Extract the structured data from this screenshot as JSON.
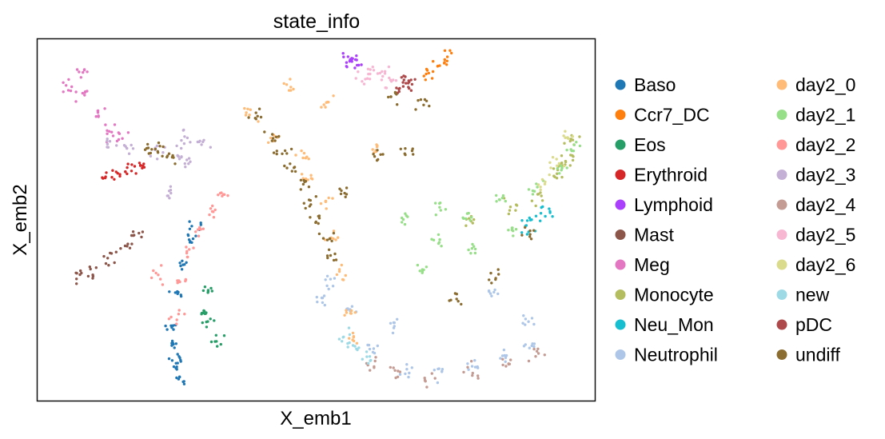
{
  "chart_data": {
    "type": "scatter",
    "title": "state_info",
    "xlabel": "X_emb1",
    "ylabel": "X_emb2",
    "grid": false,
    "legend_position": "right",
    "xlim": [
      0,
      100
    ],
    "ylim": [
      0,
      100
    ],
    "ticks_visible": false,
    "categories": [
      {
        "name": "Baso",
        "color": "#1f77b4"
      },
      {
        "name": "Ccr7_DC",
        "color": "#ff7f0e"
      },
      {
        "name": "Eos",
        "color": "#279e68"
      },
      {
        "name": "Erythroid",
        "color": "#d62728"
      },
      {
        "name": "Lymphoid",
        "color": "#aa40fc"
      },
      {
        "name": "Mast",
        "color": "#8c564b"
      },
      {
        "name": "Meg",
        "color": "#e377c2"
      },
      {
        "name": "Monocyte",
        "color": "#b5bd61"
      },
      {
        "name": "Neu_Mon",
        "color": "#17becf"
      },
      {
        "name": "Neutrophil",
        "color": "#aec7e8"
      },
      {
        "name": "day2_0",
        "color": "#ffbb78"
      },
      {
        "name": "day2_1",
        "color": "#98df8a"
      },
      {
        "name": "day2_2",
        "color": "#ff9896"
      },
      {
        "name": "day2_3",
        "color": "#c5b0d5"
      },
      {
        "name": "day2_4",
        "color": "#c49c94"
      },
      {
        "name": "day2_5",
        "color": "#f7b6d2"
      },
      {
        "name": "day2_6",
        "color": "#dbdb8d"
      },
      {
        "name": "new",
        "color": "#9edae5"
      },
      {
        "name": "pDC",
        "color": "#ad494a"
      },
      {
        "name": "undiff",
        "color": "#8c6d31"
      }
    ],
    "clusters": [
      {
        "series": "Baso",
        "points": [
          [
            26,
            6
          ],
          [
            25,
            12
          ],
          [
            24,
            20
          ],
          [
            25,
            30
          ],
          [
            26,
            38
          ],
          [
            27,
            45
          ],
          [
            28,
            48
          ],
          [
            25,
            10
          ],
          [
            24,
            16
          ]
        ]
      },
      {
        "series": "Ccr7_DC",
        "points": [
          [
            70,
            90
          ],
          [
            72,
            93
          ],
          [
            73.5,
            95
          ]
        ]
      },
      {
        "series": "Eos",
        "points": [
          [
            30,
            25
          ],
          [
            31,
            31
          ],
          [
            30,
            22
          ],
          [
            32,
            17
          ]
        ]
      },
      {
        "series": "Erythroid",
        "points": [
          [
            13,
            62
          ],
          [
            15,
            63
          ],
          [
            17,
            64
          ],
          [
            19,
            65
          ]
        ]
      },
      {
        "series": "Lymphoid",
        "points": [
          [
            56,
            94
          ],
          [
            56.5,
            93.5
          ],
          [
            57,
            94
          ]
        ]
      },
      {
        "series": "Mast",
        "points": [
          [
            7,
            35
          ],
          [
            10,
            36
          ],
          [
            13,
            39
          ],
          [
            16,
            43
          ],
          [
            18,
            46
          ]
        ]
      },
      {
        "series": "Meg",
        "points": [
          [
            5,
            87
          ],
          [
            8,
            85
          ],
          [
            11,
            80
          ],
          [
            13,
            75
          ],
          [
            15,
            73
          ],
          [
            8,
            91
          ]
        ]
      },
      {
        "series": "Monocyte",
        "points": [
          [
            78,
            51
          ],
          [
            85,
            53
          ],
          [
            90,
            57
          ],
          [
            93,
            62
          ],
          [
            95,
            67
          ],
          [
            96,
            72
          ],
          [
            94,
            65
          ]
        ]
      },
      {
        "series": "Neu_Mon",
        "points": [
          [
            88,
            48
          ],
          [
            89,
            51
          ],
          [
            91,
            53
          ]
        ]
      },
      {
        "series": "Neutrophil",
        "points": [
          [
            52,
            33
          ],
          [
            56,
            25
          ],
          [
            60,
            14
          ],
          [
            66,
            8
          ],
          [
            72,
            7
          ],
          [
            78,
            9
          ],
          [
            84,
            12
          ],
          [
            88,
            15
          ],
          [
            51,
            28
          ],
          [
            64,
            22
          ],
          [
            82,
            30
          ],
          [
            88,
            22
          ]
        ]
      },
      {
        "series": "day2_0",
        "points": [
          [
            38,
            80
          ],
          [
            42,
            73
          ],
          [
            48,
            68
          ],
          [
            52,
            55
          ],
          [
            53,
            45
          ],
          [
            55,
            35
          ],
          [
            56,
            25
          ],
          [
            57,
            17
          ],
          [
            45,
            87
          ],
          [
            52,
            82
          ],
          [
            61,
            70
          ],
          [
            48,
            62
          ]
        ]
      },
      {
        "series": "day2_1",
        "points": [
          [
            66,
            50
          ],
          [
            72,
            53
          ],
          [
            77,
            51
          ],
          [
            83,
            56
          ],
          [
            89,
            59
          ],
          [
            94,
            64
          ],
          [
            96,
            70
          ],
          [
            69,
            36
          ],
          [
            78,
            42
          ],
          [
            85,
            47
          ],
          [
            72,
            44
          ]
        ]
      },
      {
        "series": "day2_2",
        "points": [
          [
            25,
            23
          ],
          [
            26,
            33
          ],
          [
            27,
            41
          ],
          [
            29,
            47
          ],
          [
            31,
            52
          ],
          [
            33,
            57
          ],
          [
            21,
            35
          ]
        ]
      },
      {
        "series": "day2_3",
        "points": [
          [
            13,
            71
          ],
          [
            17,
            70
          ],
          [
            21,
            70
          ],
          [
            25,
            68
          ],
          [
            27,
            66
          ],
          [
            29,
            71
          ],
          [
            24,
            57
          ],
          [
            26,
            73
          ]
        ]
      },
      {
        "series": "day2_4",
        "points": [
          [
            60,
            10
          ],
          [
            64,
            8
          ],
          [
            70,
            6
          ],
          [
            78,
            8
          ],
          [
            84,
            10
          ],
          [
            89,
            13
          ]
        ]
      },
      {
        "series": "day2_5",
        "points": [
          [
            59,
            89
          ],
          [
            62,
            91
          ],
          [
            63,
            88
          ],
          [
            60,
            92
          ]
        ]
      },
      {
        "series": "day2_6",
        "points": [
          [
            91,
            60
          ],
          [
            93,
            66
          ],
          [
            95,
            73
          ]
        ]
      },
      {
        "series": "new",
        "points": [
          [
            55,
            18
          ],
          [
            57,
            15
          ],
          [
            59,
            12
          ]
        ]
      },
      {
        "series": "pDC",
        "points": [
          [
            67,
            88
          ],
          [
            65,
            86
          ],
          [
            66,
            89
          ]
        ]
      },
      {
        "series": "undiff",
        "points": [
          [
            20,
            69
          ],
          [
            22,
            70
          ],
          [
            24,
            67
          ],
          [
            39,
            79
          ],
          [
            42,
            73
          ],
          [
            44,
            68
          ],
          [
            46,
            64
          ],
          [
            48,
            60
          ],
          [
            49,
            55
          ],
          [
            50,
            50
          ],
          [
            52,
            45
          ],
          [
            53,
            40
          ],
          [
            55,
            58
          ],
          [
            62,
            68
          ],
          [
            67,
            69
          ],
          [
            75,
            28
          ],
          [
            82,
            34
          ],
          [
            88,
            46
          ],
          [
            64,
            84
          ],
          [
            69,
            82
          ]
        ]
      }
    ]
  }
}
